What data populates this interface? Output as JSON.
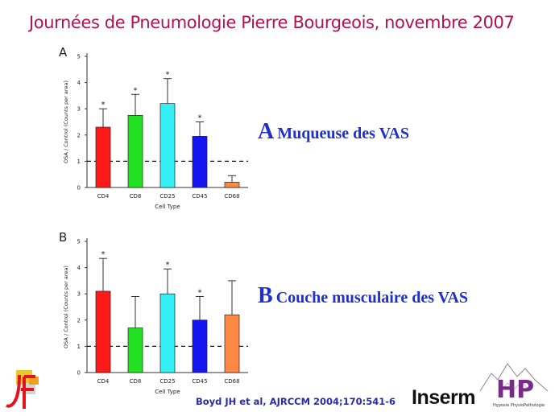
{
  "header": {
    "title": "Journées de Pneumologie Pierre Bourgeois, novembre 2007"
  },
  "labels": {
    "a_letter": "A",
    "a_text": "Muqueuse des VAS",
    "b_letter": "B",
    "b_text": "Couche musculaire des VAS"
  },
  "citation": "Boyd JH et al, AJRCCM 2004;170:541-6",
  "logos": {
    "inserm": "Inserm",
    "hp_letters": "HP",
    "hp_caption": "Hypoxie PhysioPathologie"
  },
  "chart_data": [
    {
      "type": "bar",
      "panel": "A",
      "categories": [
        "CD4",
        "CD8",
        "CD25",
        "CD45",
        "CD68"
      ],
      "values": [
        2.3,
        2.75,
        3.2,
        1.95,
        0.2
      ],
      "errors": [
        0.7,
        0.8,
        0.95,
        0.55,
        0.25
      ],
      "significant": [
        true,
        true,
        true,
        true,
        false
      ],
      "colors": [
        "#ff1a1a",
        "#22e022",
        "#33f0f5",
        "#1515f0",
        "#ff8844"
      ],
      "xlabel": "Cell Type",
      "ylabel": "OSA / Control (Counts per area)",
      "ylim": [
        0,
        5
      ],
      "yticks": [
        0,
        1,
        2,
        3,
        4,
        5
      ],
      "reference_line": 1
    },
    {
      "type": "bar",
      "panel": "B",
      "categories": [
        "CD4",
        "CD8",
        "CD25",
        "CD45",
        "CD68"
      ],
      "values": [
        3.1,
        1.7,
        3.0,
        2.0,
        2.2
      ],
      "errors": [
        1.25,
        1.2,
        0.95,
        0.9,
        1.3
      ],
      "significant": [
        true,
        false,
        true,
        true,
        false
      ],
      "colors": [
        "#ff1a1a",
        "#22e022",
        "#33f0f5",
        "#1515f0",
        "#ff8844"
      ],
      "xlabel": "Cell Type",
      "ylabel": "OSA / Control (Counts per area)",
      "ylim": [
        0,
        5
      ],
      "yticks": [
        0,
        1,
        2,
        3,
        4,
        5
      ],
      "reference_line": 1
    }
  ]
}
